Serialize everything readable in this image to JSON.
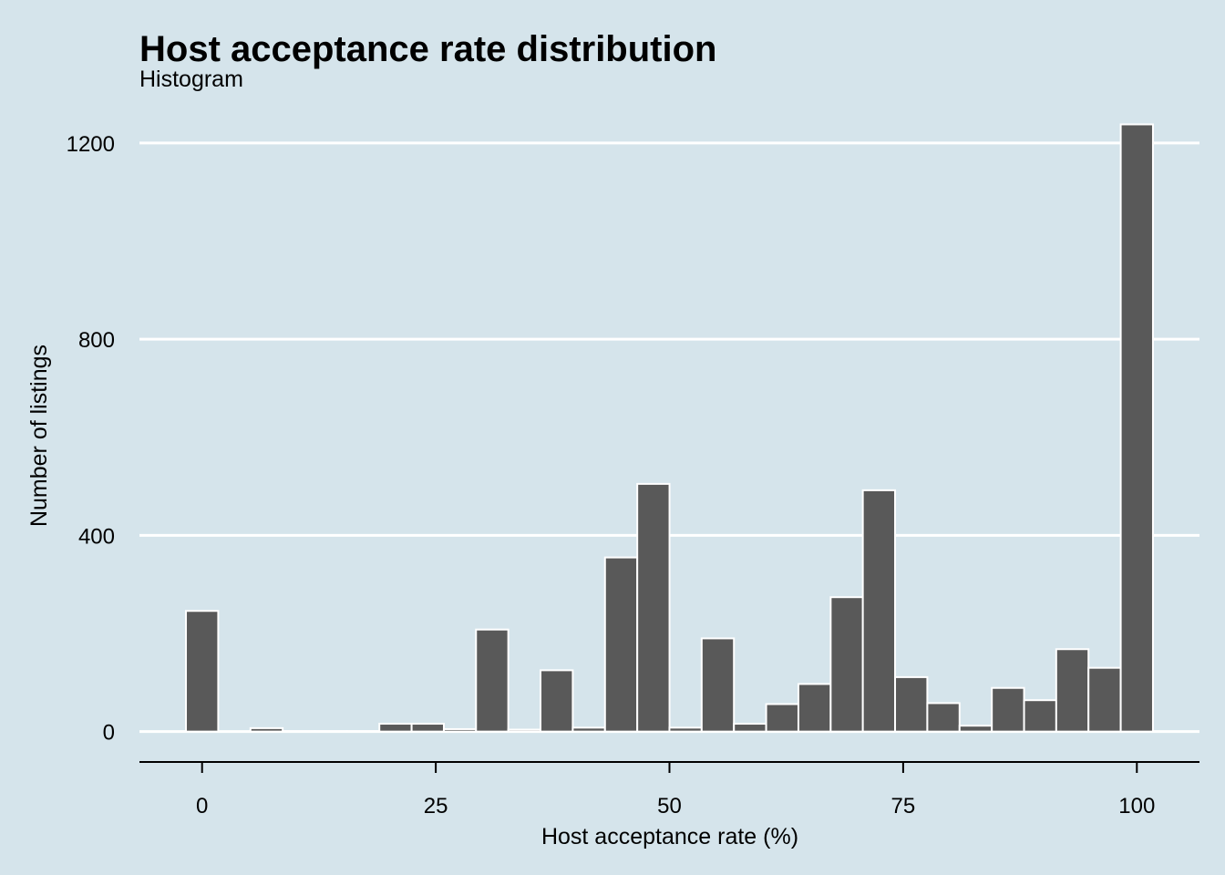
{
  "chart_data": {
    "type": "bar",
    "title": "Host acceptance rate distribution",
    "subtitle": "Histogram",
    "xlabel": "Host acceptance rate (%)",
    "ylabel": "Number of listings",
    "bin_width": 3.45,
    "x_ticks": [
      0,
      25,
      50,
      75,
      100
    ],
    "x_tick_labels": [
      "0",
      "25",
      "50",
      "75",
      "100"
    ],
    "y_ticks": [
      0,
      400,
      800,
      1200
    ],
    "y_tick_labels": [
      "0",
      "400",
      "800",
      "1200"
    ],
    "xlim": [
      -6.7,
      106.7
    ],
    "ylim": [
      -62,
      1250
    ],
    "bins": [
      {
        "x": 0.0,
        "count": 246
      },
      {
        "x": 3.45,
        "count": 0
      },
      {
        "x": 6.9,
        "count": 7
      },
      {
        "x": 10.34,
        "count": 1
      },
      {
        "x": 13.79,
        "count": 1
      },
      {
        "x": 17.24,
        "count": 1
      },
      {
        "x": 20.69,
        "count": 16
      },
      {
        "x": 24.14,
        "count": 16
      },
      {
        "x": 27.59,
        "count": 5
      },
      {
        "x": 31.03,
        "count": 208
      },
      {
        "x": 34.48,
        "count": 4
      },
      {
        "x": 37.93,
        "count": 125
      },
      {
        "x": 41.38,
        "count": 8
      },
      {
        "x": 44.83,
        "count": 355
      },
      {
        "x": 48.28,
        "count": 505
      },
      {
        "x": 51.72,
        "count": 8
      },
      {
        "x": 55.17,
        "count": 190
      },
      {
        "x": 58.62,
        "count": 16
      },
      {
        "x": 62.07,
        "count": 56
      },
      {
        "x": 65.52,
        "count": 97
      },
      {
        "x": 68.97,
        "count": 274
      },
      {
        "x": 72.41,
        "count": 492
      },
      {
        "x": 75.86,
        "count": 111
      },
      {
        "x": 79.31,
        "count": 58
      },
      {
        "x": 82.76,
        "count": 12
      },
      {
        "x": 86.21,
        "count": 89
      },
      {
        "x": 89.66,
        "count": 64
      },
      {
        "x": 93.1,
        "count": 168
      },
      {
        "x": 96.55,
        "count": 130
      },
      {
        "x": 100.0,
        "count": 1238
      }
    ],
    "grid": "horizontal-major",
    "legend": "none",
    "colors": {
      "background": "#d5e4eb",
      "bar_fill": "#595959",
      "bar_outline": "#ffffff",
      "grid": "#ffffff",
      "axis": "#000000"
    }
  }
}
